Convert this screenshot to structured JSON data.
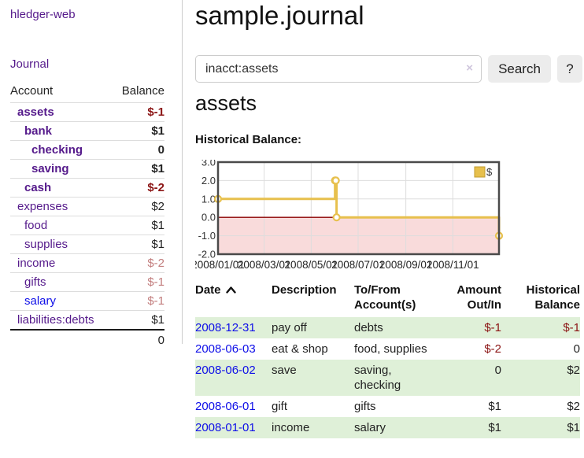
{
  "sidebar": {
    "brand": "hledger-web",
    "journal_link": "Journal",
    "columns": {
      "account": "Account",
      "balance": "Balance"
    },
    "accounts": [
      {
        "name": "assets",
        "balance": "$-1",
        "indent": 1,
        "bold": true
      },
      {
        "name": "bank",
        "balance": "$1",
        "indent": 2,
        "bold": true
      },
      {
        "name": "checking",
        "balance": "0",
        "indent": 3,
        "bold": true
      },
      {
        "name": "saving",
        "balance": "$1",
        "indent": 3,
        "bold": true
      },
      {
        "name": "cash",
        "balance": "$-2",
        "indent": 2,
        "bold": true
      },
      {
        "name": "expenses",
        "balance": "$2",
        "indent": 1,
        "bold": false
      },
      {
        "name": "food",
        "balance": "$1",
        "indent": 2,
        "bold": false
      },
      {
        "name": "supplies",
        "balance": "$1",
        "indent": 2,
        "bold": false
      },
      {
        "name": "income",
        "balance": "$-2",
        "indent": 1,
        "bold": false
      },
      {
        "name": "gifts",
        "balance": "$-1",
        "indent": 2,
        "bold": false
      },
      {
        "name": "salary",
        "balance": "$-1",
        "indent": 2,
        "bold": false,
        "link_color": "blue"
      },
      {
        "name": "liabilities:debts",
        "balance": "$1",
        "indent": 1,
        "bold": false
      }
    ],
    "total": "0"
  },
  "main": {
    "title": "sample.journal",
    "search": {
      "value": "inacct:assets",
      "clear_icon": "×",
      "search_button": "Search",
      "help_button": "?"
    },
    "heading": "assets",
    "chart_title": "Historical Balance:"
  },
  "chart_data": {
    "type": "line",
    "step": true,
    "title": "Historical Balance",
    "series": [
      {
        "name": "$",
        "points": [
          [
            "2008-01-01",
            1.0
          ],
          [
            "2008-06-01",
            2.0
          ],
          [
            "2008-06-02",
            2.0
          ],
          [
            "2008-06-03",
            0.0
          ],
          [
            "2008-12-31",
            -1.0
          ]
        ]
      }
    ],
    "ylim": [
      -2.0,
      3.0
    ],
    "yticks": [
      3.0,
      2.0,
      1.0,
      0.0,
      -1.0,
      -2.0
    ],
    "xticks": [
      "2008/01/01",
      "2008/03/01",
      "2008/05/01",
      "2008/07/01",
      "2008/09/01",
      "2008/11/01"
    ],
    "x_range": [
      "2008-01-01",
      "2008-12-31"
    ],
    "grid": true,
    "legend": {
      "label": "$",
      "position": "top-right"
    },
    "colors": {
      "line": "#e7c04d",
      "legend_border": "#c09b2e",
      "marker_fill": "#ffffff",
      "negative_fill": "#f9dbdb",
      "zero_line": "#8b0000",
      "grid": "#dddddd",
      "border": "#4a4a4a"
    }
  },
  "register": {
    "columns": [
      {
        "label": "Date",
        "align": "left",
        "sort": "asc"
      },
      {
        "label": "Description",
        "align": "left"
      },
      {
        "label": "To/From\nAccount(s)",
        "align": "left"
      },
      {
        "label": "Amount\nOut/In",
        "align": "right"
      },
      {
        "label": "Historical\nBalance",
        "align": "right"
      }
    ],
    "rows": [
      {
        "date": "2008-12-31",
        "description": "pay off",
        "accounts": "debts",
        "amount": "$-1",
        "balance": "$-1"
      },
      {
        "date": "2008-06-03",
        "description": "eat & shop",
        "accounts": "food, supplies",
        "amount": "$-2",
        "balance": "0"
      },
      {
        "date": "2008-06-02",
        "description": "save",
        "accounts": "saving, checking",
        "amount": "0",
        "balance": "$2"
      },
      {
        "date": "2008-06-01",
        "description": "gift",
        "accounts": "gifts",
        "amount": "$1",
        "balance": "$2"
      },
      {
        "date": "2008-01-01",
        "description": "income",
        "accounts": "salary",
        "amount": "$1",
        "balance": "$1"
      }
    ]
  },
  "colors": {
    "accent_purple": "#551a8b",
    "link_blue": "#0f0fe8",
    "negative_strong": "#8b1414",
    "negative_soft": "#c27d7d",
    "row_green": "#dff0d8"
  }
}
